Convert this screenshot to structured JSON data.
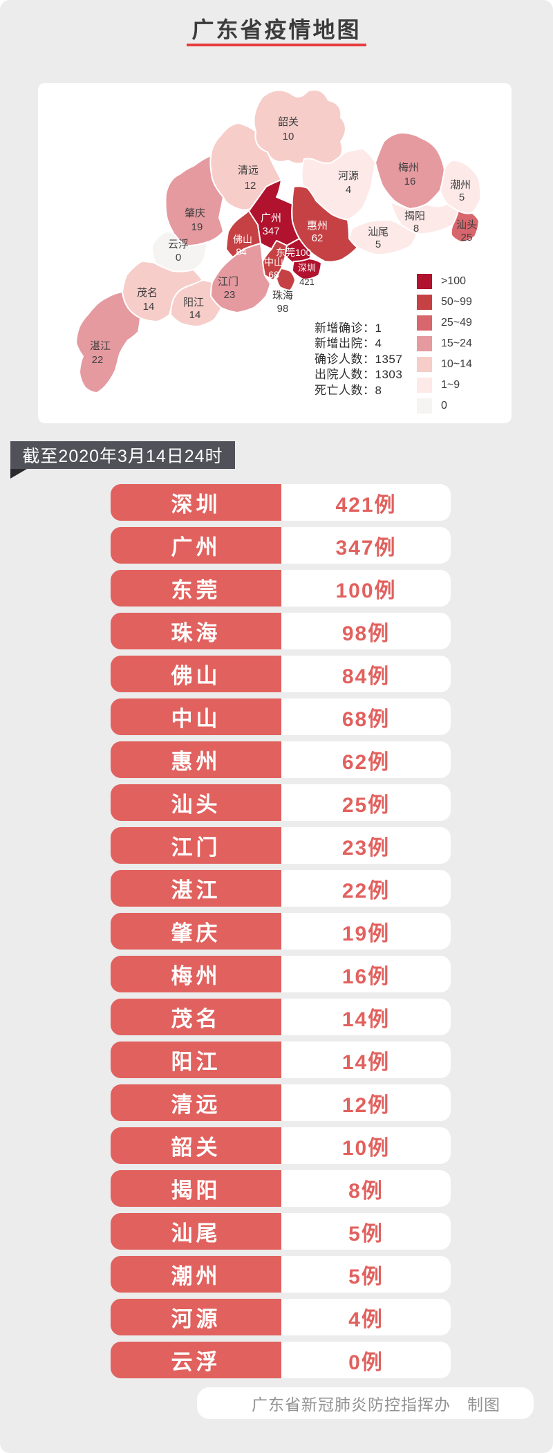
{
  "header": {
    "title": "广东省疫情地图"
  },
  "map": {
    "regions": [
      {
        "name": "韶关",
        "value": "10",
        "color": "#f6cdc9"
      },
      {
        "name": "清远",
        "value": "12",
        "color": "#f6cdc9"
      },
      {
        "name": "肇庆",
        "value": "19",
        "color": "#e59aa0"
      },
      {
        "name": "云浮",
        "value": "0",
        "color": "#f6f4f3"
      },
      {
        "name": "河源",
        "value": "4",
        "color": "#fce9e8"
      },
      {
        "name": "梅州",
        "value": "16",
        "color": "#e59aa0"
      },
      {
        "name": "潮州",
        "value": "5",
        "color": "#fce9e8"
      },
      {
        "name": "揭阳",
        "value": "8",
        "color": "#fce9e8"
      },
      {
        "name": "汕头",
        "value": "25",
        "color": "#d7676d"
      },
      {
        "name": "汕尾",
        "value": "5",
        "color": "#fce9e8"
      },
      {
        "name": "惠州",
        "value": "62",
        "color": "#c54143"
      },
      {
        "name": "茂名",
        "value": "14",
        "color": "#f6cdc9"
      },
      {
        "name": "阳江",
        "value": "14",
        "color": "#f6cdc9"
      },
      {
        "name": "湛江",
        "value": "22",
        "color": "#e59aa0"
      },
      {
        "name": "江门",
        "value": "23",
        "color": "#e59aa0"
      },
      {
        "name": "佛山",
        "value": "84",
        "color": "#c54143"
      },
      {
        "name": "广州",
        "value": "347",
        "color": "#b1122d"
      },
      {
        "name": "东莞",
        "value": "100",
        "color": "#b1122d"
      },
      {
        "name": "中山",
        "value": "68",
        "color": "#c54143"
      },
      {
        "name": "珠海",
        "value": "98",
        "color": "#c54143"
      },
      {
        "name": "深圳",
        "value": "421",
        "color": "#b1122d"
      }
    ],
    "legend": [
      {
        "label": ">100",
        "color": "#b1122d"
      },
      {
        "label": "50~99",
        "color": "#c54143"
      },
      {
        "label": "25~49",
        "color": "#d7676d"
      },
      {
        "label": "15~24",
        "color": "#e59aa0"
      },
      {
        "label": "10~14",
        "color": "#f6cdc9"
      },
      {
        "label": "1~9",
        "color": "#fce9e8"
      },
      {
        "label": "0",
        "color": "#f6f4f3"
      }
    ],
    "stats": [
      "新增确诊：1",
      "新增出院：4",
      "确诊人数：1357",
      "出院人数：1303",
      "死亡人数：8"
    ]
  },
  "banner": {
    "text": "截至2020年3月14日24时"
  },
  "table": {
    "rows": [
      {
        "city": "深圳",
        "cases": "421例"
      },
      {
        "city": "广州",
        "cases": "347例"
      },
      {
        "city": "东莞",
        "cases": "100例"
      },
      {
        "city": "珠海",
        "cases": "98例"
      },
      {
        "city": "佛山",
        "cases": "84例"
      },
      {
        "city": "中山",
        "cases": "68例"
      },
      {
        "city": "惠州",
        "cases": "62例"
      },
      {
        "city": "汕头",
        "cases": "25例"
      },
      {
        "city": "江门",
        "cases": "23例"
      },
      {
        "city": "湛江",
        "cases": "22例"
      },
      {
        "city": "肇庆",
        "cases": "19例"
      },
      {
        "city": "梅州",
        "cases": "16例"
      },
      {
        "city": "茂名",
        "cases": "14例"
      },
      {
        "city": "阳江",
        "cases": "14例"
      },
      {
        "city": "清远",
        "cases": "12例"
      },
      {
        "city": "韶关",
        "cases": "10例"
      },
      {
        "city": "揭阳",
        "cases": "8例"
      },
      {
        "city": "汕尾",
        "cases": "5例"
      },
      {
        "city": "潮州",
        "cases": "5例"
      },
      {
        "city": "河源",
        "cases": "4例"
      },
      {
        "city": "云浮",
        "cases": "0例"
      }
    ]
  },
  "footer": {
    "text": "广东省新冠肺炎防控指挥办　制图"
  },
  "chart_data": {
    "type": "heatmap",
    "subtype": "choropleth-map",
    "title": "广东省疫情地图",
    "as_of": "截至2020年3月14日24时",
    "categories": [
      "深圳",
      "广州",
      "东莞",
      "珠海",
      "佛山",
      "中山",
      "惠州",
      "汕头",
      "江门",
      "湛江",
      "肇庆",
      "梅州",
      "茂名",
      "阳江",
      "清远",
      "韶关",
      "揭阳",
      "汕尾",
      "潮州",
      "河源",
      "云浮"
    ],
    "values": [
      421,
      347,
      100,
      98,
      84,
      68,
      62,
      25,
      23,
      22,
      19,
      16,
      14,
      14,
      12,
      10,
      8,
      5,
      5,
      4,
      0
    ],
    "totals": {
      "新增确诊": 1,
      "新增出院": 4,
      "确诊人数": 1357,
      "出院人数": 1303,
      "死亡人数": 8
    },
    "legend_bins": [
      ">100",
      "50~99",
      "25~49",
      "15~24",
      "10~14",
      "1~9",
      "0"
    ],
    "legend_colors": [
      "#b1122d",
      "#c54143",
      "#d7676d",
      "#e59aa0",
      "#f6cdc9",
      "#fce9e8",
      "#f6f4f3"
    ],
    "legend_position": "right",
    "unit": "例"
  }
}
